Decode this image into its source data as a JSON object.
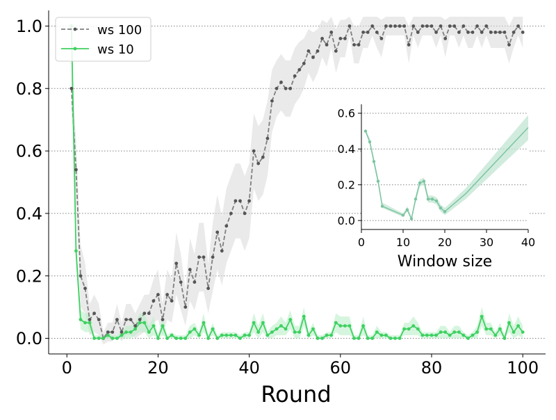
{
  "chart_data": [
    {
      "type": "line",
      "title": "",
      "xlabel": "Round",
      "ylabel": "",
      "xlim": [
        -4,
        105
      ],
      "ylim": [
        -0.05,
        1.05
      ],
      "xticks": [
        0,
        20,
        40,
        60,
        80,
        100
      ],
      "yticks": [
        0.0,
        0.2,
        0.4,
        0.6,
        0.8,
        1.0
      ],
      "xtick_labels": [
        "0",
        "20",
        "40",
        "60",
        "80",
        "100"
      ],
      "ytick_labels": [
        "0.0",
        "0.2",
        "0.4",
        "0.6",
        "0.8",
        "1.0"
      ],
      "grid": "horizontal dotted",
      "legend": "top-left",
      "series": [
        {
          "name": "ws 100",
          "color": "#7f7f7f",
          "band_color": "#d9d9d9",
          "style": "dashed",
          "x": [
            1,
            2,
            3,
            4,
            5,
            6,
            7,
            8,
            9,
            10,
            11,
            12,
            13,
            14,
            15,
            16,
            17,
            18,
            19,
            20,
            21,
            22,
            23,
            24,
            25,
            26,
            27,
            28,
            29,
            30,
            31,
            32,
            33,
            34,
            35,
            36,
            37,
            38,
            39,
            40,
            41,
            42,
            43,
            44,
            45,
            46,
            47,
            48,
            49,
            50,
            51,
            52,
            53,
            54,
            55,
            56,
            57,
            58,
            59,
            60,
            61,
            62,
            63,
            64,
            65,
            66,
            67,
            68,
            69,
            70,
            71,
            72,
            73,
            74,
            75,
            76,
            77,
            78,
            79,
            80,
            81,
            82,
            83,
            84,
            85,
            86,
            87,
            88,
            89,
            90,
            91,
            92,
            93,
            94,
            95,
            96,
            97,
            98,
            99,
            100
          ],
          "values": [
            0.8,
            0.54,
            0.2,
            0.16,
            0.06,
            0.08,
            0.06,
            0.0,
            0.02,
            0.02,
            0.06,
            0.02,
            0.06,
            0.06,
            0.04,
            0.06,
            0.08,
            0.08,
            0.12,
            0.14,
            0.06,
            0.14,
            0.12,
            0.24,
            0.18,
            0.1,
            0.22,
            0.18,
            0.26,
            0.26,
            0.16,
            0.26,
            0.34,
            0.28,
            0.36,
            0.4,
            0.44,
            0.44,
            0.4,
            0.44,
            0.6,
            0.56,
            0.58,
            0.64,
            0.76,
            0.8,
            0.82,
            0.8,
            0.8,
            0.84,
            0.86,
            0.88,
            0.92,
            0.9,
            0.92,
            0.96,
            0.94,
            0.98,
            0.92,
            0.96,
            0.96,
            1.0,
            0.94,
            0.94,
            0.98,
            0.98,
            1.0,
            0.98,
            0.96,
            1.0,
            1.0,
            1.0,
            1.0,
            1.0,
            0.94,
            1.0,
            0.98,
            1.0,
            1.0,
            1.0,
            0.98,
            1.0,
            0.96,
            1.0,
            1.0,
            0.98,
            1.0,
            0.98,
            0.98,
            1.0,
            0.98,
            1.0,
            0.98,
            0.98,
            0.98,
            0.98,
            0.94,
            0.98,
            1.0,
            0.98
          ],
          "lower": [
            0.74,
            0.44,
            0.1,
            0.08,
            0.01,
            0.02,
            0.01,
            -0.02,
            -0.01,
            -0.01,
            0.01,
            -0.01,
            0.01,
            0.01,
            0.0,
            0.01,
            0.02,
            0.02,
            0.05,
            0.06,
            0.01,
            0.06,
            0.05,
            0.14,
            0.09,
            0.04,
            0.12,
            0.09,
            0.15,
            0.15,
            0.08,
            0.15,
            0.22,
            0.17,
            0.24,
            0.28,
            0.32,
            0.32,
            0.28,
            0.32,
            0.48,
            0.44,
            0.46,
            0.52,
            0.66,
            0.71,
            0.73,
            0.71,
            0.71,
            0.75,
            0.77,
            0.8,
            0.85,
            0.82,
            0.85,
            0.9,
            0.87,
            0.93,
            0.85,
            0.9,
            0.9,
            0.97,
            0.88,
            0.88,
            0.93,
            0.93,
            0.97,
            0.93,
            0.9,
            0.97,
            0.97,
            0.97,
            0.97,
            0.97,
            0.88,
            0.97,
            0.93,
            0.97,
            0.97,
            0.97,
            0.93,
            0.97,
            0.9,
            0.97,
            0.97,
            0.93,
            0.97,
            0.93,
            0.93,
            0.97,
            0.93,
            0.97,
            0.93,
            0.93,
            0.93,
            0.93,
            0.88,
            0.93,
            0.97,
            0.93
          ],
          "upper": [
            0.86,
            0.64,
            0.3,
            0.24,
            0.11,
            0.14,
            0.11,
            0.02,
            0.05,
            0.05,
            0.11,
            0.05,
            0.11,
            0.11,
            0.08,
            0.11,
            0.14,
            0.14,
            0.19,
            0.22,
            0.11,
            0.22,
            0.19,
            0.34,
            0.27,
            0.16,
            0.32,
            0.27,
            0.37,
            0.37,
            0.24,
            0.37,
            0.46,
            0.39,
            0.48,
            0.52,
            0.56,
            0.56,
            0.52,
            0.56,
            0.72,
            0.68,
            0.7,
            0.76,
            0.86,
            0.89,
            0.91,
            0.89,
            0.89,
            0.93,
            0.95,
            0.96,
            0.99,
            0.98,
            0.99,
            1.02,
            1.01,
            1.03,
            0.99,
            1.02,
            1.02,
            1.03,
            1.0,
            1.0,
            1.03,
            1.03,
            1.03,
            1.03,
            1.02,
            1.03,
            1.03,
            1.03,
            1.03,
            1.03,
            1.0,
            1.03,
            1.03,
            1.03,
            1.03,
            1.03,
            1.03,
            1.03,
            1.02,
            1.03,
            1.03,
            1.03,
            1.03,
            1.03,
            1.03,
            1.03,
            1.03,
            1.03,
            1.03,
            1.03,
            1.03,
            1.03,
            1.0,
            1.03,
            1.03,
            1.03
          ]
        },
        {
          "name": "ws 10",
          "color": "#3ed061",
          "band_color": "#b5ecc2",
          "style": "solid",
          "x": [
            1,
            2,
            3,
            4,
            5,
            6,
            7,
            8,
            9,
            10,
            11,
            12,
            13,
            14,
            15,
            16,
            17,
            18,
            19,
            20,
            21,
            22,
            23,
            24,
            25,
            26,
            27,
            28,
            29,
            30,
            31,
            32,
            33,
            34,
            35,
            36,
            37,
            38,
            39,
            40,
            41,
            42,
            43,
            44,
            45,
            46,
            47,
            48,
            49,
            50,
            51,
            52,
            53,
            54,
            55,
            56,
            57,
            58,
            59,
            60,
            61,
            62,
            63,
            64,
            65,
            66,
            67,
            68,
            69,
            70,
            71,
            72,
            73,
            74,
            75,
            76,
            77,
            78,
            79,
            80,
            81,
            82,
            83,
            84,
            85,
            86,
            87,
            88,
            89,
            90,
            91,
            92,
            93,
            94,
            95,
            96,
            97,
            98,
            99,
            100
          ],
          "values": [
            1.0,
            0.28,
            0.06,
            0.05,
            0.05,
            0.0,
            0.0,
            0.0,
            0.01,
            0.0,
            0.0,
            0.01,
            0.02,
            0.02,
            0.03,
            0.05,
            0.05,
            0.02,
            0.04,
            0.0,
            0.04,
            0.0,
            0.01,
            0.0,
            0.0,
            0.0,
            0.02,
            0.03,
            0.01,
            0.05,
            0.0,
            0.03,
            0.0,
            0.01,
            0.01,
            0.01,
            0.01,
            0.0,
            0.01,
            0.01,
            0.05,
            0.02,
            0.05,
            0.01,
            0.02,
            0.03,
            0.04,
            0.03,
            0.06,
            0.02,
            0.02,
            0.07,
            0.01,
            0.03,
            0.0,
            0.0,
            0.01,
            0.01,
            0.05,
            0.04,
            0.04,
            0.04,
            0.0,
            0.0,
            0.04,
            0.0,
            0.0,
            0.02,
            0.01,
            0.01,
            0.0,
            0.0,
            0.0,
            0.03,
            0.03,
            0.04,
            0.03,
            0.01,
            0.01,
            0.01,
            0.01,
            0.02,
            0.02,
            0.01,
            0.02,
            0.02,
            0.01,
            0.0,
            0.01,
            0.02,
            0.07,
            0.03,
            0.03,
            0.01,
            0.03,
            0.0,
            0.05,
            0.02,
            0.04,
            0.02
          ],
          "lower": [
            0.97,
            0.24,
            0.03,
            0.02,
            0.02,
            0.0,
            0.0,
            0.0,
            0.0,
            0.0,
            0.0,
            0.0,
            0.0,
            0.0,
            0.01,
            0.02,
            0.02,
            0.0,
            0.01,
            0.0,
            0.01,
            0.0,
            0.0,
            0.0,
            0.0,
            0.0,
            0.0,
            0.01,
            0.0,
            0.02,
            0.0,
            0.01,
            0.0,
            0.0,
            0.0,
            0.0,
            0.0,
            0.0,
            0.0,
            0.0,
            0.02,
            0.0,
            0.02,
            0.0,
            0.0,
            0.01,
            0.01,
            0.01,
            0.03,
            0.0,
            0.0,
            0.04,
            0.0,
            0.01,
            0.0,
            0.0,
            0.0,
            0.0,
            0.02,
            0.01,
            0.01,
            0.01,
            0.0,
            0.0,
            0.01,
            0.0,
            0.0,
            0.0,
            0.0,
            0.0,
            0.0,
            0.0,
            0.0,
            0.01,
            0.01,
            0.01,
            0.01,
            0.0,
            0.0,
            0.0,
            0.0,
            0.0,
            0.0,
            0.0,
            0.0,
            0.0,
            0.0,
            0.0,
            0.0,
            0.0,
            0.04,
            0.01,
            0.01,
            0.0,
            0.01,
            0.0,
            0.02,
            0.0,
            0.01,
            0.0
          ],
          "upper": [
            1.01,
            0.32,
            0.09,
            0.08,
            0.08,
            0.01,
            0.01,
            0.01,
            0.02,
            0.01,
            0.01,
            0.02,
            0.04,
            0.04,
            0.05,
            0.08,
            0.08,
            0.04,
            0.07,
            0.01,
            0.07,
            0.01,
            0.02,
            0.01,
            0.01,
            0.01,
            0.04,
            0.05,
            0.02,
            0.08,
            0.01,
            0.05,
            0.01,
            0.02,
            0.02,
            0.02,
            0.02,
            0.01,
            0.02,
            0.02,
            0.08,
            0.04,
            0.08,
            0.02,
            0.04,
            0.05,
            0.07,
            0.05,
            0.09,
            0.04,
            0.04,
            0.1,
            0.02,
            0.05,
            0.01,
            0.01,
            0.02,
            0.02,
            0.08,
            0.07,
            0.07,
            0.07,
            0.01,
            0.01,
            0.07,
            0.01,
            0.01,
            0.04,
            0.02,
            0.02,
            0.01,
            0.01,
            0.01,
            0.05,
            0.05,
            0.07,
            0.05,
            0.02,
            0.02,
            0.02,
            0.02,
            0.04,
            0.04,
            0.02,
            0.04,
            0.04,
            0.02,
            0.01,
            0.02,
            0.04,
            0.1,
            0.05,
            0.05,
            0.02,
            0.05,
            0.01,
            0.08,
            0.04,
            0.07,
            0.04
          ]
        }
      ]
    },
    {
      "type": "line",
      "title": "",
      "xlabel": "Window size",
      "ylabel": "",
      "xlim": [
        0,
        40
      ],
      "ylim": [
        -0.05,
        0.65
      ],
      "xticks": [
        0,
        10,
        20,
        30,
        40
      ],
      "yticks": [
        0.0,
        0.2,
        0.4,
        0.6
      ],
      "xtick_labels": [
        "0",
        "10",
        "20",
        "30",
        "40"
      ],
      "ytick_labels": [
        "0.0",
        "0.2",
        "0.4",
        "0.6"
      ],
      "grid": "horizontal dotted",
      "series": [
        {
          "color": "#7cc4a0",
          "band_color": "#c2e6d3",
          "x": [
            1,
            2,
            3,
            4,
            5,
            10,
            11,
            12,
            13,
            14,
            15,
            16,
            17,
            18,
            19,
            20,
            25,
            40
          ],
          "values": [
            0.5,
            0.44,
            0.33,
            0.22,
            0.08,
            0.03,
            0.06,
            0.01,
            0.12,
            0.21,
            0.22,
            0.12,
            0.12,
            0.11,
            0.07,
            0.05,
            0.15,
            0.52
          ],
          "lower": [
            0.49,
            0.43,
            0.31,
            0.2,
            0.07,
            0.02,
            0.05,
            0.0,
            0.1,
            0.19,
            0.2,
            0.1,
            0.1,
            0.09,
            0.05,
            0.03,
            0.12,
            0.45
          ],
          "upper": [
            0.51,
            0.46,
            0.35,
            0.24,
            0.1,
            0.04,
            0.08,
            0.02,
            0.14,
            0.23,
            0.24,
            0.14,
            0.14,
            0.13,
            0.09,
            0.07,
            0.18,
            0.59
          ],
          "markers": [
            true,
            true,
            true,
            true,
            true,
            true,
            true,
            true,
            true,
            true,
            true,
            true,
            true,
            true,
            true,
            true,
            false,
            false
          ]
        }
      ]
    }
  ]
}
